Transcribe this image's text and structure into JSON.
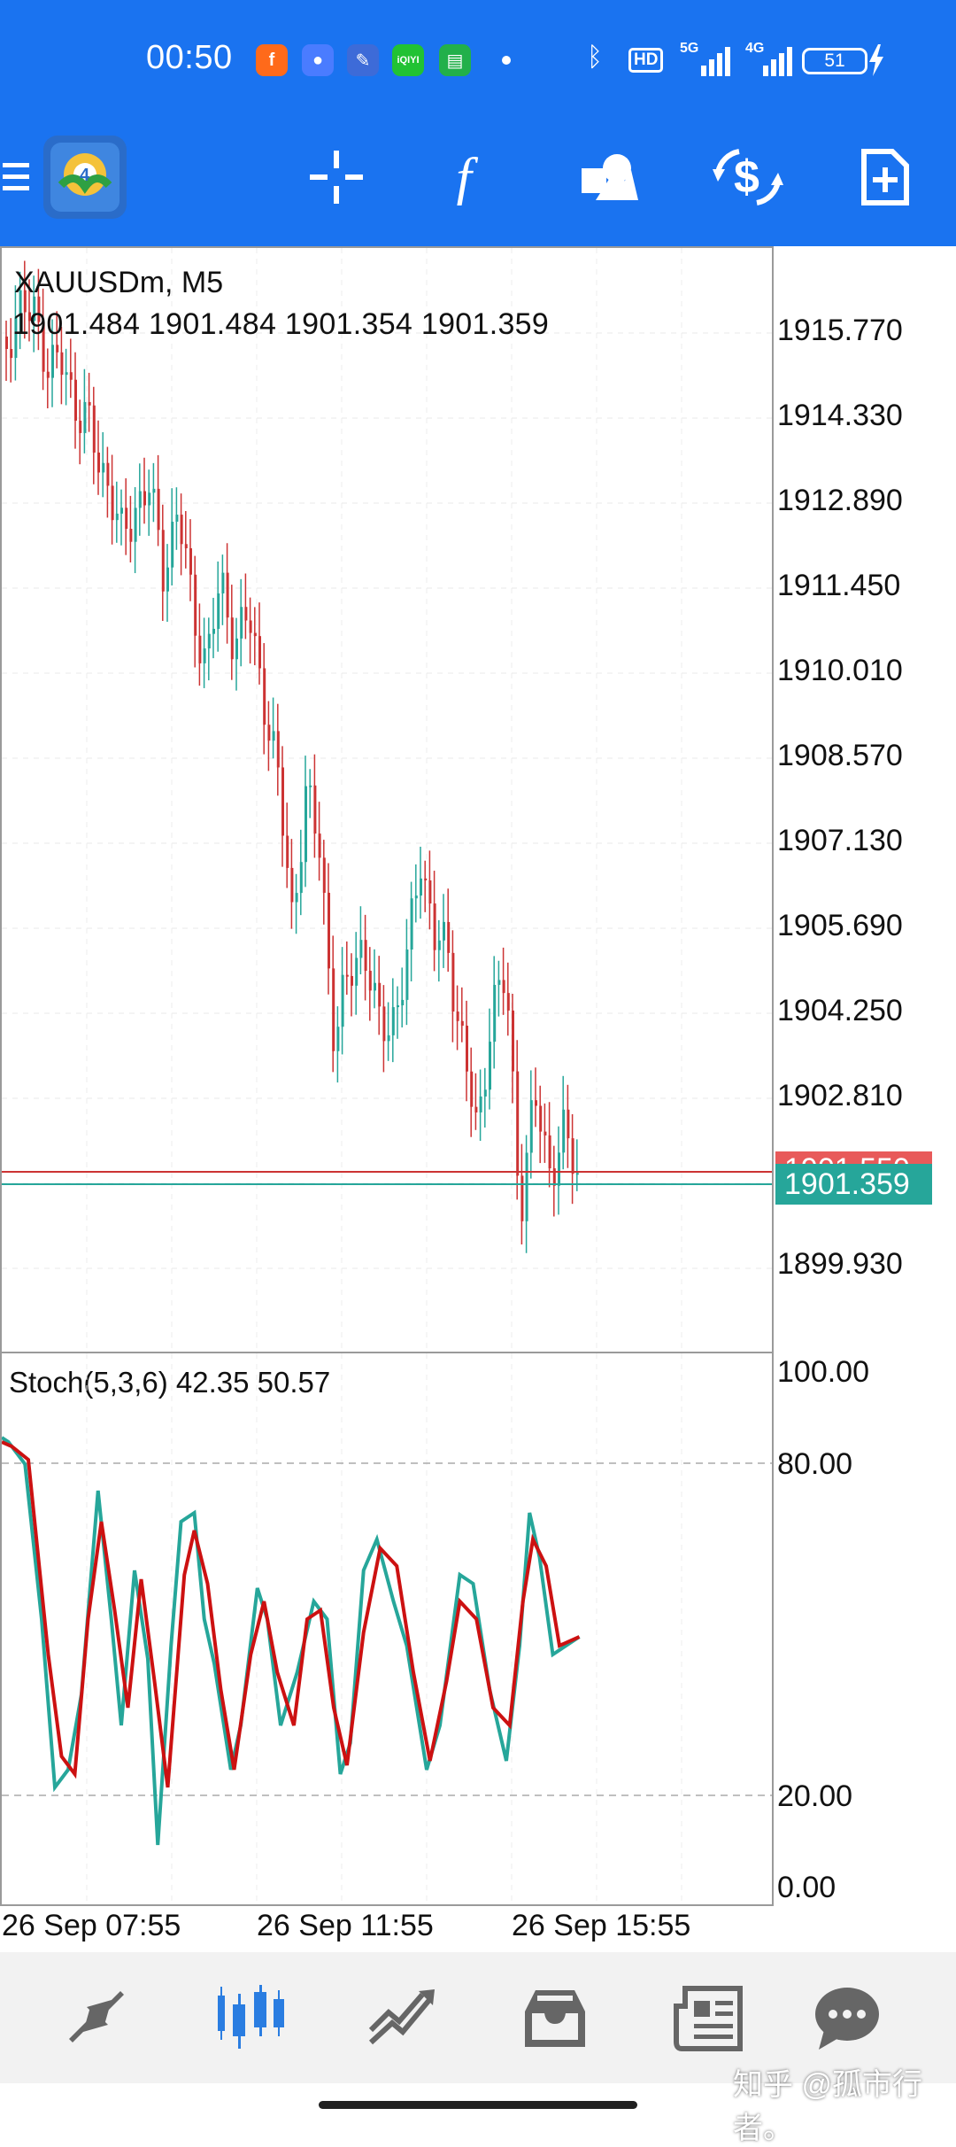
{
  "status_bar": {
    "time": "00:50",
    "notification_icons": [
      "fanqie-icon",
      "message-bubble-icon",
      "weather-news-icon",
      "iqiyi-icon",
      "chat-icon"
    ],
    "iqiyi_text": "iQIYI",
    "hd_badge": "HD",
    "network_1": "5G",
    "network_2": "4G",
    "battery_level": "51"
  },
  "toolbar": {
    "items": [
      "menu-icon",
      "app-logo-icon",
      "crosshair-icon",
      "indicators-icon",
      "objects-icon",
      "symbol-change-icon",
      "new-order-icon"
    ],
    "logo_badge": "4"
  },
  "chart": {
    "symbol_timeframe": "XAUUSDm, M5",
    "ohlc": "1901.484 1901.484 1901.354 1901.359",
    "price_axis": [
      "1915.770",
      "1914.330",
      "1912.890",
      "1911.450",
      "1910.010",
      "1908.570",
      "1907.130",
      "1905.690",
      "1904.250",
      "1902.810",
      "1899.930"
    ],
    "ask_price": "1901.550",
    "bid_price": "1901.359",
    "colors": {
      "bull": "#26a69a",
      "bear": "#cc3333",
      "ask_line": "#cc3333",
      "bid_line": "#26a69a"
    }
  },
  "stochastic": {
    "label": "Stoch(5,3,6) 42.35 50.57",
    "levels": [
      "100.00",
      "80.00",
      "20.00",
      "0.00"
    ],
    "main_color": "#26a69a",
    "signal_color": "#cc1111"
  },
  "time_axis": [
    "26 Sep 07:55",
    "26 Sep 11:55",
    "26 Sep 15:55"
  ],
  "bottom_nav": {
    "items": [
      "quotes-icon",
      "chart-icon",
      "trade-icon",
      "history-icon",
      "news-icon",
      "messages-icon"
    ],
    "active": "chart-icon"
  },
  "watermark": "知乎 @孤市行者。"
}
